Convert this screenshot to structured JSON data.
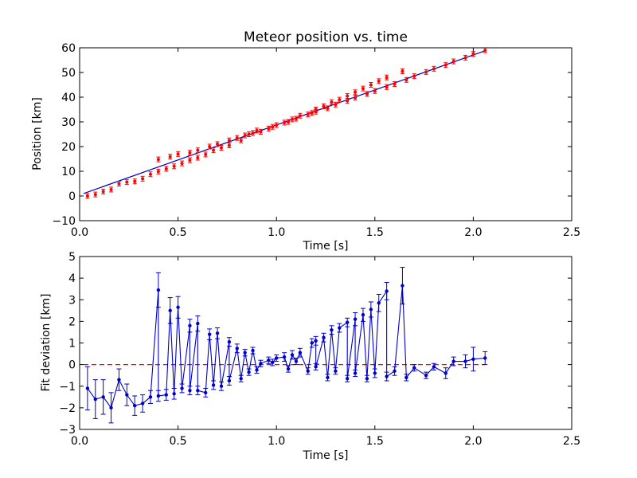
{
  "chart_data": [
    {
      "type": "scatter",
      "title": "Meteor position vs. time",
      "xlabel": "Time [s]",
      "ylabel": "Position [km]",
      "xlim": [
        0.0,
        2.5
      ],
      "ylim": [
        -10,
        60
      ],
      "xticks": [
        "0.0",
        "0.5",
        "1.0",
        "1.5",
        "2.0",
        "2.5"
      ],
      "yticks": [
        "−10",
        "0",
        "10",
        "20",
        "30",
        "40",
        "50",
        "60"
      ],
      "grid": false,
      "colors": {
        "points": "#ff0000",
        "fit": "#0000cc"
      },
      "fit_line": {
        "x": [
          0.02,
          2.06
        ],
        "y": [
          1.0,
          58.8
        ]
      },
      "points": [
        {
          "x": 0.04,
          "y": 0.0
        },
        {
          "x": 0.08,
          "y": 0.6
        },
        {
          "x": 0.12,
          "y": 1.8
        },
        {
          "x": 0.16,
          "y": 2.6
        },
        {
          "x": 0.2,
          "y": 5.0
        },
        {
          "x": 0.24,
          "y": 5.6
        },
        {
          "x": 0.28,
          "y": 5.9
        },
        {
          "x": 0.32,
          "y": 7.0
        },
        {
          "x": 0.36,
          "y": 8.8
        },
        {
          "x": 0.4,
          "y": 14.8
        },
        {
          "x": 0.4,
          "y": 9.9
        },
        {
          "x": 0.44,
          "y": 11.0
        },
        {
          "x": 0.46,
          "y": 15.9
        },
        {
          "x": 0.48,
          "y": 12.0
        },
        {
          "x": 0.5,
          "y": 17.0
        },
        {
          "x": 0.52,
          "y": 13.2
        },
        {
          "x": 0.56,
          "y": 17.5
        },
        {
          "x": 0.56,
          "y": 14.5
        },
        {
          "x": 0.6,
          "y": 18.5
        },
        {
          "x": 0.6,
          "y": 15.5
        },
        {
          "x": 0.64,
          "y": 16.8
        },
        {
          "x": 0.66,
          "y": 20.0
        },
        {
          "x": 0.68,
          "y": 18.5
        },
        {
          "x": 0.7,
          "y": 21.0
        },
        {
          "x": 0.72,
          "y": 19.5
        },
        {
          "x": 0.76,
          "y": 22.5
        },
        {
          "x": 0.76,
          "y": 20.5
        },
        {
          "x": 0.8,
          "y": 23.5
        },
        {
          "x": 0.82,
          "y": 22.5
        },
        {
          "x": 0.84,
          "y": 24.5
        },
        {
          "x": 0.86,
          "y": 25.0
        },
        {
          "x": 0.88,
          "y": 25.5
        },
        {
          "x": 0.9,
          "y": 26.5
        },
        {
          "x": 0.92,
          "y": 26.0
        },
        {
          "x": 0.96,
          "y": 27.3
        },
        {
          "x": 0.98,
          "y": 28.0
        },
        {
          "x": 1.0,
          "y": 28.7
        },
        {
          "x": 1.04,
          "y": 29.7
        },
        {
          "x": 1.06,
          "y": 30.0
        },
        {
          "x": 1.08,
          "y": 31.0
        },
        {
          "x": 1.1,
          "y": 31.3
        },
        {
          "x": 1.12,
          "y": 32.5
        },
        {
          "x": 1.16,
          "y": 33.0
        },
        {
          "x": 1.18,
          "y": 33.6
        },
        {
          "x": 1.2,
          "y": 35.0
        },
        {
          "x": 1.2,
          "y": 34.1
        },
        {
          "x": 1.24,
          "y": 36.3
        },
        {
          "x": 1.26,
          "y": 35.5
        },
        {
          "x": 1.28,
          "y": 38.0
        },
        {
          "x": 1.3,
          "y": 37.0
        },
        {
          "x": 1.32,
          "y": 39.0
        },
        {
          "x": 1.36,
          "y": 40.5
        },
        {
          "x": 1.36,
          "y": 38.5
        },
        {
          "x": 1.4,
          "y": 42.0
        },
        {
          "x": 1.4,
          "y": 39.8
        },
        {
          "x": 1.44,
          "y": 43.5
        },
        {
          "x": 1.46,
          "y": 41.3
        },
        {
          "x": 1.48,
          "y": 45.0
        },
        {
          "x": 1.5,
          "y": 42.5
        },
        {
          "x": 1.52,
          "y": 46.5
        },
        {
          "x": 1.56,
          "y": 48.0
        },
        {
          "x": 1.56,
          "y": 44.1
        },
        {
          "x": 1.6,
          "y": 45.3
        },
        {
          "x": 1.64,
          "y": 50.5
        },
        {
          "x": 1.66,
          "y": 47.0
        },
        {
          "x": 1.7,
          "y": 48.5
        },
        {
          "x": 1.76,
          "y": 50.2
        },
        {
          "x": 1.8,
          "y": 51.5
        },
        {
          "x": 1.86,
          "y": 53.0
        },
        {
          "x": 1.9,
          "y": 54.5
        },
        {
          "x": 1.96,
          "y": 56.0
        },
        {
          "x": 2.0,
          "y": 57.5
        },
        {
          "x": 2.06,
          "y": 59.0
        }
      ]
    },
    {
      "type": "line",
      "title": "",
      "xlabel": "Time [s]",
      "ylabel": "Fit deviation [km]",
      "xlim": [
        0.0,
        2.5
      ],
      "ylim": [
        -3,
        5
      ],
      "xticks": [
        "0.0",
        "0.5",
        "1.0",
        "1.5",
        "2.0",
        "2.5"
      ],
      "yticks": [
        "−3",
        "−2",
        "−1",
        "0",
        "1",
        "2",
        "3",
        "4",
        "5"
      ],
      "grid": false,
      "colors": {
        "series": "#0000cc",
        "zero_line": "#ff0000"
      },
      "zero_line": {
        "x": [
          0.02,
          2.06
        ],
        "y": 0
      },
      "series": [
        {
          "x": [
            0.04,
            0.08,
            0.12,
            0.16,
            0.2,
            0.24,
            0.28,
            0.32,
            0.36,
            0.4,
            0.4,
            0.44,
            0.46,
            0.48,
            0.5,
            0.52,
            0.56,
            0.56,
            0.6,
            0.6,
            0.64,
            0.66,
            0.68,
            0.7,
            0.72,
            0.76,
            0.76,
            0.8,
            0.82,
            0.84,
            0.86,
            0.88,
            0.9,
            0.92,
            0.96,
            0.98,
            1.0,
            1.04,
            1.06,
            1.08,
            1.1,
            1.12,
            1.16,
            1.18,
            1.2,
            1.2,
            1.24,
            1.26,
            1.28,
            1.3,
            1.32,
            1.36,
            1.36,
            1.4,
            1.4,
            1.44,
            1.46,
            1.48,
            1.5,
            1.52,
            1.56,
            1.56,
            1.6,
            1.64,
            1.66,
            1.7,
            1.76,
            1.8,
            1.86,
            1.9,
            1.96,
            2.0,
            2.06
          ],
          "y": [
            -1.1,
            -1.6,
            -1.5,
            -2.0,
            -0.7,
            -1.4,
            -1.9,
            -1.8,
            -1.5,
            3.45,
            -1.45,
            -1.4,
            2.5,
            -1.35,
            2.65,
            -1.1,
            1.8,
            -1.2,
            1.9,
            -1.2,
            -1.3,
            1.4,
            -0.95,
            1.45,
            -1.0,
            1.05,
            -0.75,
            0.75,
            -0.65,
            0.55,
            -0.35,
            0.65,
            -0.25,
            0.05,
            0.2,
            0.1,
            0.3,
            0.35,
            -0.2,
            0.45,
            0.15,
            0.55,
            -0.3,
            1.0,
            1.1,
            -0.1,
            1.25,
            -0.6,
            1.6,
            -0.3,
            1.7,
            1.95,
            -0.65,
            2.1,
            -0.4,
            2.3,
            -0.65,
            2.55,
            -0.4,
            2.85,
            3.4,
            -0.55,
            -0.3,
            3.65,
            -0.6,
            -0.15,
            -0.5,
            -0.1,
            -0.4,
            0.15,
            0.15,
            0.25,
            0.3
          ],
          "err": [
            1.0,
            0.9,
            0.8,
            0.7,
            0.5,
            0.5,
            0.45,
            0.4,
            0.3,
            0.8,
            0.25,
            0.25,
            0.6,
            0.25,
            0.5,
            0.2,
            0.3,
            0.2,
            0.35,
            0.2,
            0.2,
            0.25,
            0.2,
            0.25,
            0.2,
            0.2,
            0.2,
            0.2,
            0.15,
            0.15,
            0.15,
            0.15,
            0.15,
            0.15,
            0.15,
            0.15,
            0.15,
            0.2,
            0.15,
            0.2,
            0.15,
            0.2,
            0.15,
            0.2,
            0.2,
            0.15,
            0.2,
            0.15,
            0.2,
            0.15,
            0.2,
            0.2,
            0.15,
            0.3,
            0.15,
            0.3,
            0.15,
            0.35,
            0.2,
            0.4,
            0.4,
            0.2,
            0.2,
            0.85,
            0.15,
            0.15,
            0.15,
            0.15,
            0.25,
            0.2,
            0.3,
            0.55,
            0.3
          ]
        }
      ]
    }
  ]
}
